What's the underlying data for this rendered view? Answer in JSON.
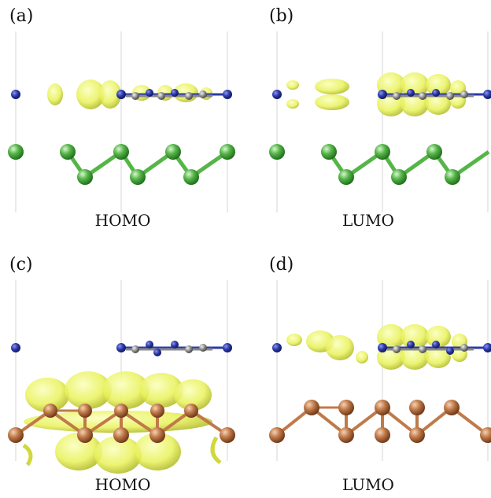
{
  "panels": [
    {
      "label": "(a)",
      "caption": "HOMO"
    },
    {
      "label": "(b)",
      "caption": "LUMO"
    },
    {
      "label": "(c)",
      "caption": "HOMO"
    },
    {
      "label": "(d)",
      "caption": "LUMO"
    }
  ],
  "colors": {
    "nitrogen": "#2c3aa8",
    "carbon": "#8a8a8a",
    "sulfur_green": "#55b548",
    "copper": "#c07a4a",
    "isosurface": "#e9f25a",
    "guide_line": "#d6d6d6"
  }
}
